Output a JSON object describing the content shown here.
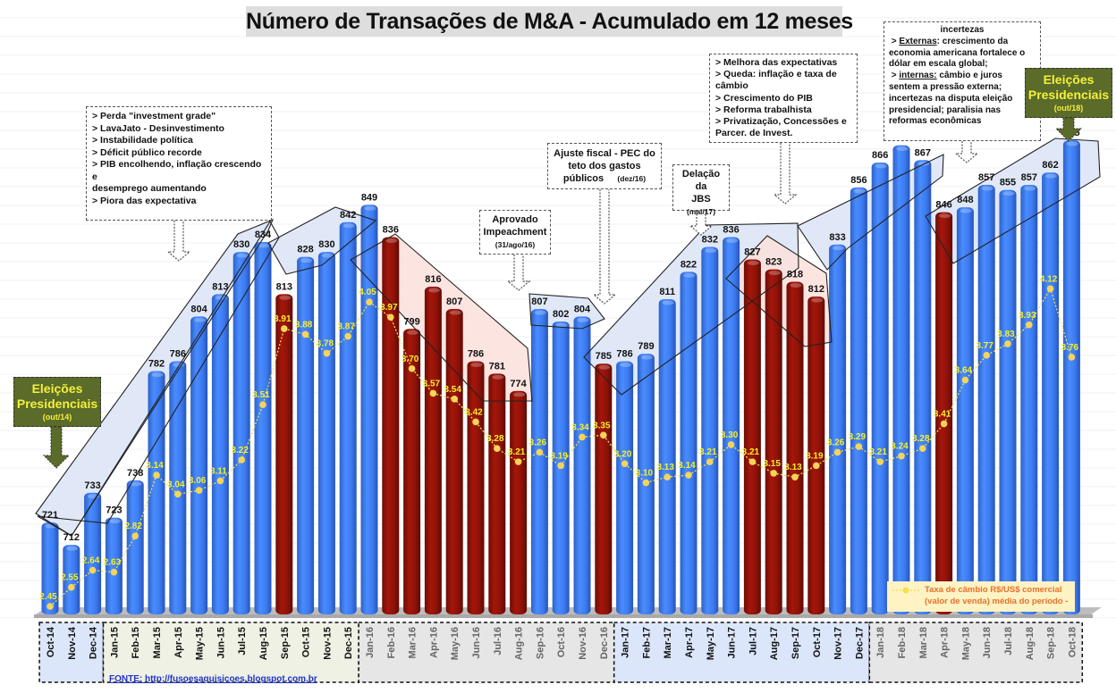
{
  "colors": {
    "blue_bar": "#3f7df0",
    "red_bar": "#8e1208",
    "line": "#f3e04a",
    "line_label": "#f5f028",
    "election_box": "#5a6b2a",
    "legend_bg": "#fff3c4",
    "legend_text": "#e8702a"
  },
  "chart_data": {
    "type": "bar",
    "title": "Número de Transações de M&A - Acumulado em 12 meses",
    "xlabel": "",
    "ylabel": "",
    "ylim": [
      684,
      880
    ],
    "y2lim": [
      2.4,
      4.2
    ],
    "grid": false,
    "categories": [
      "Oct-14",
      "Nov-14",
      "Dec-14",
      "Jan-15",
      "Feb-15",
      "Mar-15",
      "Apr-15",
      "May-15",
      "Jun-15",
      "Jul-15",
      "Aug-15",
      "Sep-15",
      "Oct-15",
      "Nov-15",
      "Dec-15",
      "Jan-16",
      "Feb-16",
      "Mar-16",
      "Apr-16",
      "May-16",
      "Jun-16",
      "Jul-16",
      "Aug-16",
      "Sep-16",
      "Oct-16",
      "Nov-16",
      "Dec-16",
      "Jan-17",
      "Feb-17",
      "Mar-17",
      "Apr-17",
      "May-17",
      "Jun-17",
      "Jul-17",
      "Aug-17",
      "Sep-17",
      "Oct-17",
      "Nov-17",
      "Dec-17",
      "Jan-18",
      "Feb-18",
      "Mar-18",
      "Apr-18",
      "May-18",
      "Jun-18",
      "Jul-18",
      "Aug-18",
      "Sep-18",
      "Oct-18"
    ],
    "series": [
      {
        "name": "Número de Transações de M&A - Acumulado em 12 meses",
        "type": "bar",
        "values": [
          721,
          712,
          733,
          723,
          738,
          782,
          786,
          804,
          813,
          830,
          834,
          813,
          828,
          830,
          842,
          849,
          836,
          799,
          816,
          807,
          786,
          781,
          774,
          807,
          802,
          804,
          785,
          786,
          789,
          811,
          822,
          832,
          836,
          827,
          823,
          818,
          812,
          833,
          856,
          866,
          873,
          867,
          846,
          848,
          857,
          855,
          857,
          862,
          875
        ],
        "colors": [
          "b",
          "b",
          "b",
          "b",
          "b",
          "b",
          "b",
          "b",
          "b",
          "b",
          "b",
          "r",
          "b",
          "b",
          "b",
          "b",
          "r",
          "r",
          "r",
          "r",
          "r",
          "r",
          "r",
          "b",
          "b",
          "b",
          "r",
          "b",
          "b",
          "b",
          "b",
          "b",
          "b",
          "r",
          "r",
          "r",
          "r",
          "b",
          "b",
          "b",
          "b",
          "b",
          "r",
          "b",
          "b",
          "b",
          "b",
          "b",
          "b"
        ]
      },
      {
        "name": "Taxa de câmbio R$/US$ comercial (valor de venda) média do período -",
        "type": "line",
        "values": [
          2.45,
          2.55,
          2.64,
          2.63,
          2.82,
          3.14,
          3.04,
          3.06,
          3.11,
          3.22,
          3.51,
          3.91,
          3.88,
          3.78,
          3.87,
          4.05,
          3.97,
          3.7,
          3.57,
          3.54,
          3.42,
          3.28,
          3.21,
          3.26,
          3.19,
          3.34,
          3.35,
          3.2,
          3.1,
          3.13,
          3.14,
          3.21,
          3.3,
          3.21,
          3.15,
          3.13,
          3.19,
          3.26,
          3.29,
          3.21,
          3.24,
          3.28,
          3.41,
          3.64,
          3.77,
          3.83,
          3.93,
          4.12,
          3.76
        ],
        "labels": [
          "2.45",
          "2.55",
          "2.64",
          "2.63",
          "2.82",
          "3.14",
          "3.04",
          "3.06",
          "3.11",
          "3.22",
          "3.51",
          "3.91",
          "3.88",
          "3.78",
          "3.87",
          "4.05",
          "3.97",
          "3.70",
          "3.57",
          "3.54",
          "3.42",
          "3.28",
          "3.21",
          "3.26",
          "3.19",
          "3.34",
          "3.35",
          "3.20",
          "3.10",
          "3.13",
          "3.14",
          "3.21",
          "3.30",
          "3.21",
          "3.15",
          "3.13",
          "3.19",
          "3.26",
          "3.29",
          "3.21",
          "3.24",
          "3.28",
          "3.41",
          "3.64",
          "3.77",
          "3.83",
          "3.93",
          "4.12",
          "3.76"
        ]
      }
    ],
    "legend": {
      "position": "bottom-right",
      "line1": "Taxa de câmbio R$/US$ comercial",
      "line2": "(valor de venda) média do período -"
    },
    "annotations": {
      "crisis": {
        "lines": [
          "> Perda \"investment grade\"",
          "> LavaJato - Desinvestimento",
          "> Instabilidade política",
          "> Déficit público recorde",
          "> PIB encolhendo, inflação crescendo e",
          "desemprego aumentando",
          "> Piora das expectativa"
        ]
      },
      "impeachment": {
        "line1": "Aprovado",
        "line2": "Impeachment",
        "date": "(31/ago/16)"
      },
      "ajuste": {
        "line1": "Ajuste fiscal - PEC do",
        "line2": "teto dos gastos",
        "line3": "públicos",
        "date": "(dez/16)"
      },
      "jbs": {
        "line1": "Delação da",
        "line2": "JBS",
        "date": "(mai/17)"
      },
      "melhora": {
        "lines": [
          "> Melhora das expectativas",
          "> Queda: inflação e taxa de",
          "câmbio",
          "> Crescimento do PIB",
          "> Reforma trabalhista",
          "> Privatização, Concessões e",
          "Parcer. de Invest."
        ]
      },
      "incertezas": {
        "title": "incertezas",
        "ext_prefix": "> ",
        "ext_label": "Externas",
        "ext_text": ": crescimento da economia americana fortalece o dólar em escala global;",
        "int_prefix": "> ",
        "int_label": "internas:",
        "int_text": " câmbio e juros sentem a pressão externa; incertezas na disputa eleição presidencial; paralisia nas reformas econômicas"
      },
      "elections_2014": {
        "line1": "Eleições",
        "line2": "Presidenciais",
        "date": "(out/14)"
      },
      "elections_2018": {
        "line1": "Eleições",
        "line2": "Presidenciais",
        "date": "(out/18)"
      }
    },
    "source": "FONTE: http://fusoesaquisicoes.blogspot.com.br"
  }
}
